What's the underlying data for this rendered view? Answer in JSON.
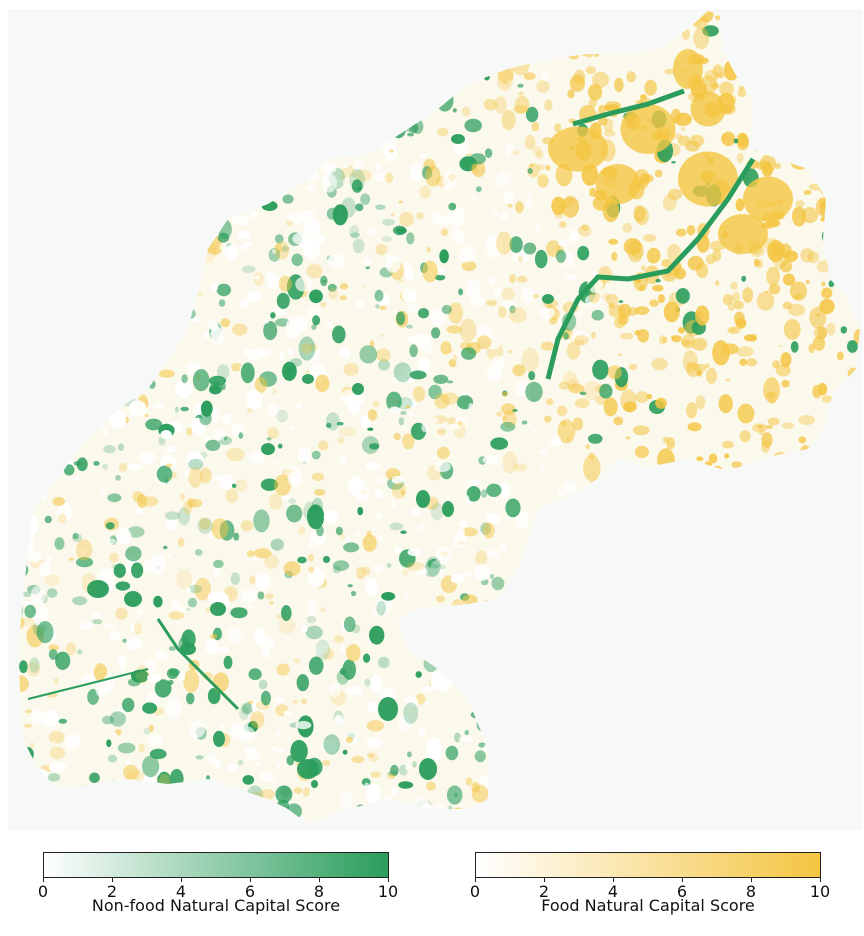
{
  "map": {
    "background_color": "#f7f9f9",
    "nonfood_color": "#2a9d5c",
    "food_color": "#f4c542",
    "light_color": "#fdf6dc"
  },
  "legend": {
    "nonfood": {
      "label": "Non-food Natural Capital Score",
      "ticks": [
        "0",
        "2",
        "4",
        "6",
        "8",
        "10"
      ],
      "min": 0,
      "max": 10,
      "color_low": "#ffffff",
      "color_high": "#2a9d5c"
    },
    "food": {
      "label": "Food Natural Capital Score",
      "ticks": [
        "0",
        "2",
        "4",
        "6",
        "8",
        "10"
      ],
      "min": 0,
      "max": 10,
      "color_low": "#ffffff",
      "color_high": "#f4c542"
    }
  }
}
